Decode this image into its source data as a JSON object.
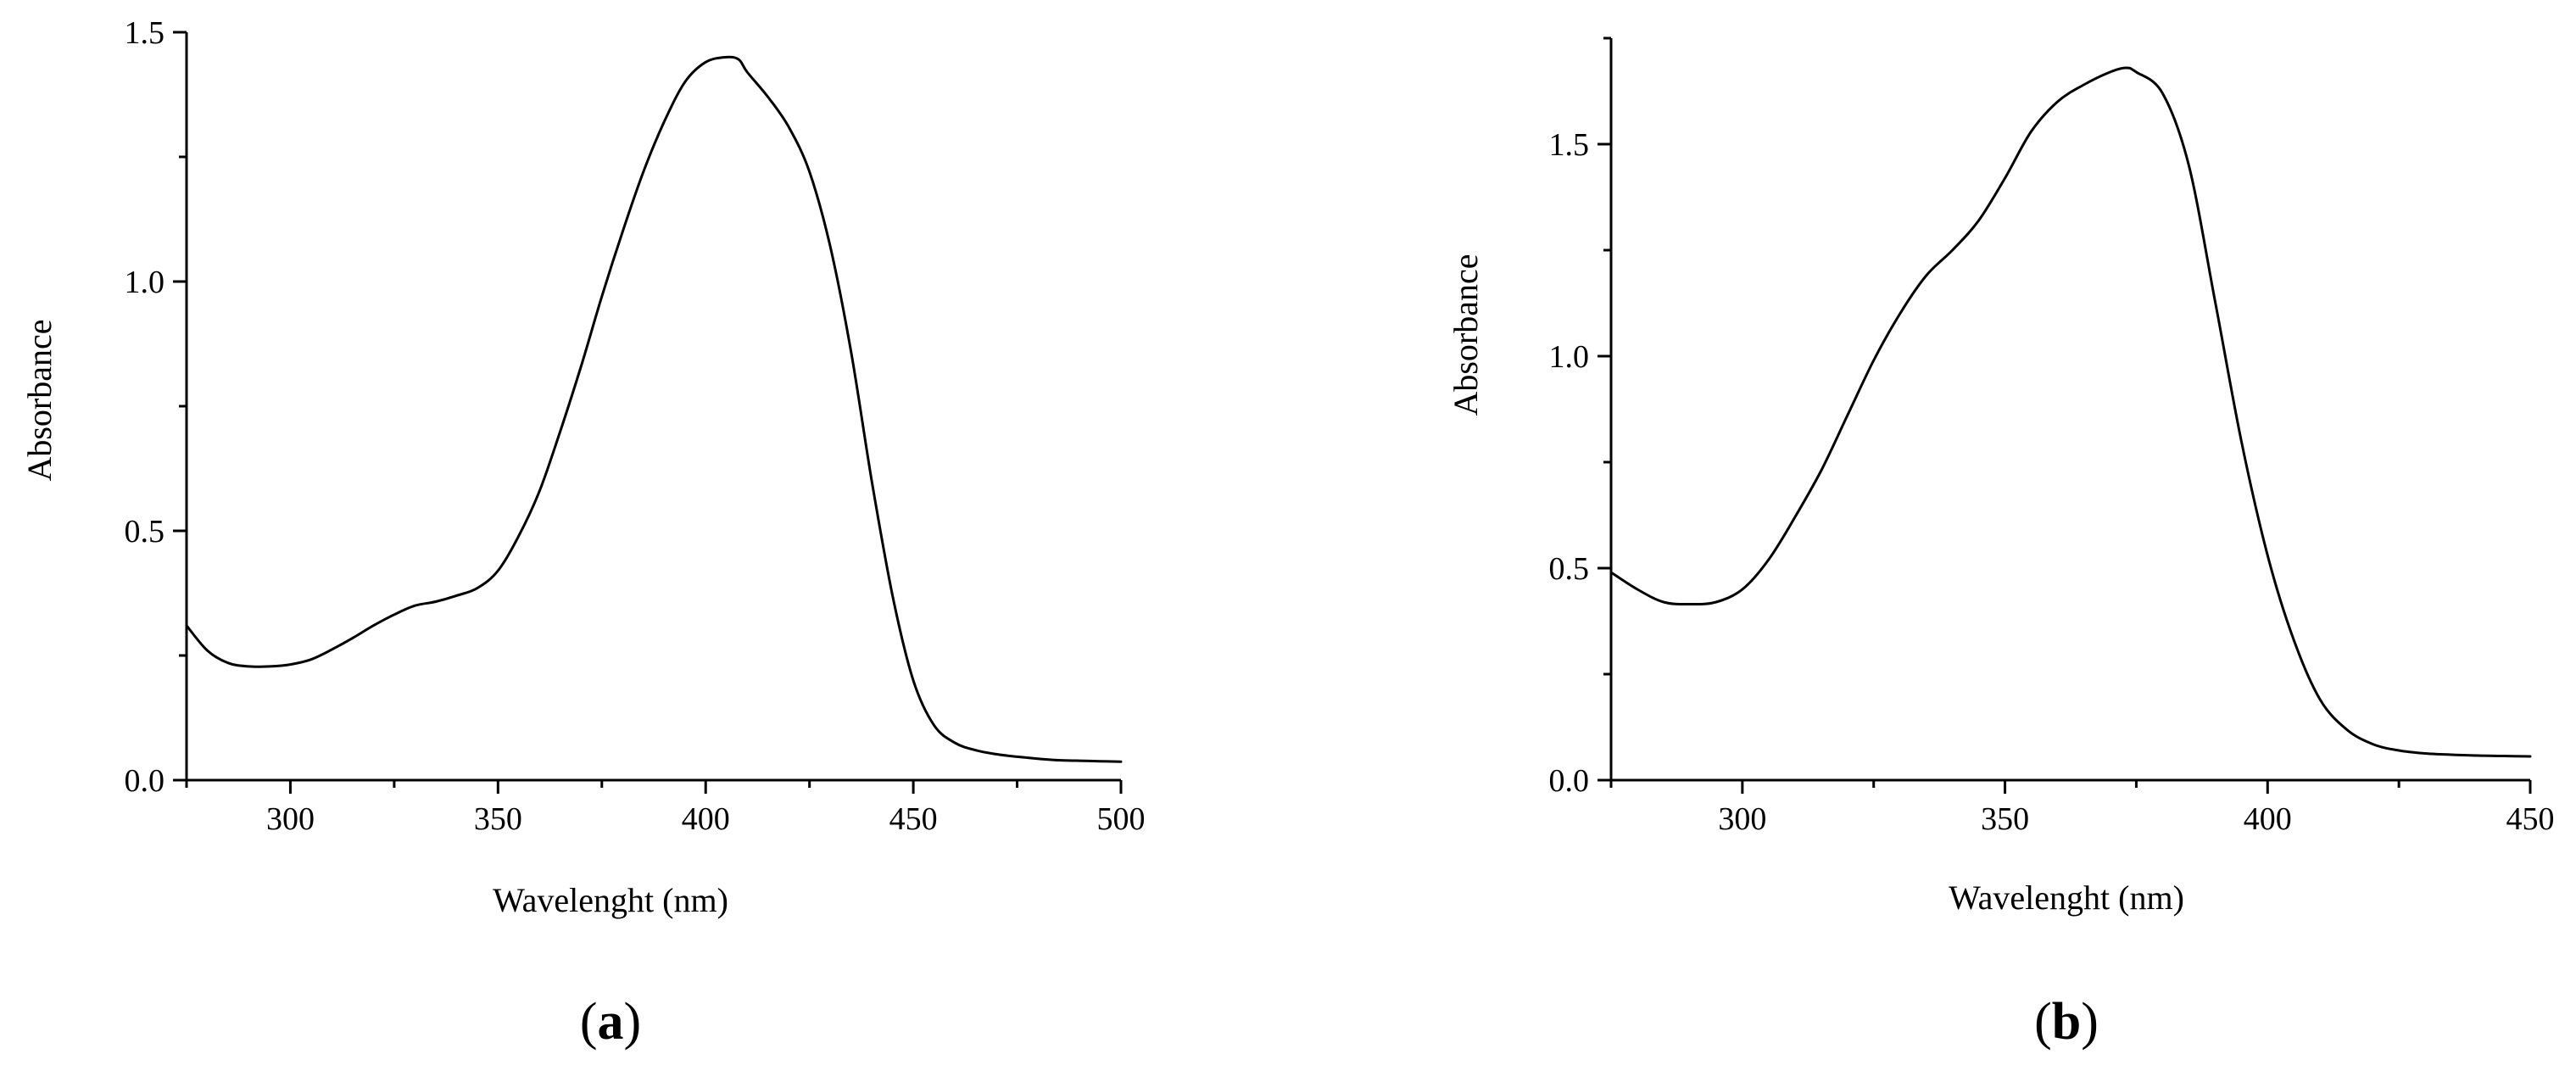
{
  "chart_data": [
    {
      "type": "line",
      "panel": "a",
      "xlabel": "Wavelenght (nm)",
      "ylabel": "Absorbance",
      "xlim": [
        275,
        500
      ],
      "ylim": [
        0,
        1.5
      ],
      "xticks": [
        300,
        350,
        400,
        450,
        500
      ],
      "yticks": [
        0.0,
        0.5,
        1.0,
        1.5
      ],
      "xtick_labels": [
        "300",
        "350",
        "400",
        "450",
        "500"
      ],
      "ytick_labels": [
        "0.0",
        "0.5",
        "1.0",
        "1.5"
      ],
      "grid": false,
      "series": [
        {
          "x": [
            275,
            280,
            285,
            290,
            295,
            300,
            305,
            310,
            315,
            320,
            325,
            330,
            335,
            340,
            345,
            350,
            355,
            360,
            365,
            370,
            375,
            380,
            385,
            390,
            395,
            400,
            405,
            408,
            410,
            415,
            420,
            425,
            430,
            435,
            440,
            445,
            450,
            455,
            460,
            465,
            470,
            475,
            480,
            485,
            490,
            495,
            500
          ],
          "y": [
            0.31,
            0.26,
            0.235,
            0.228,
            0.228,
            0.232,
            0.242,
            0.262,
            0.285,
            0.31,
            0.332,
            0.35,
            0.358,
            0.37,
            0.385,
            0.42,
            0.49,
            0.58,
            0.7,
            0.83,
            0.97,
            1.1,
            1.22,
            1.32,
            1.4,
            1.44,
            1.45,
            1.445,
            1.42,
            1.37,
            1.31,
            1.22,
            1.07,
            0.86,
            0.6,
            0.37,
            0.2,
            0.11,
            0.075,
            0.06,
            0.052,
            0.047,
            0.043,
            0.04,
            0.039,
            0.038,
            0.037
          ]
        }
      ]
    },
    {
      "type": "line",
      "panel": "b",
      "xlabel": "Wavelenght (nm)",
      "ylabel": "Absorbance",
      "xlim": [
        275,
        450
      ],
      "ylim": [
        0,
        1.75
      ],
      "xticks": [
        300,
        350,
        400,
        450
      ],
      "yticks": [
        0.0,
        0.5,
        1.0,
        1.5
      ],
      "xtick_labels": [
        "300",
        "350",
        "400",
        "450"
      ],
      "ytick_labels": [
        "0.0",
        "0.5",
        "1.0",
        "1.5"
      ],
      "grid": false,
      "series": [
        {
          "x": [
            275,
            280,
            285,
            290,
            295,
            300,
            305,
            310,
            315,
            320,
            325,
            330,
            335,
            340,
            345,
            350,
            355,
            360,
            365,
            370,
            373,
            375,
            380,
            385,
            390,
            395,
            400,
            405,
            410,
            415,
            420,
            425,
            430,
            435,
            440,
            445,
            450
          ],
          "y": [
            0.49,
            0.45,
            0.42,
            0.415,
            0.42,
            0.45,
            0.52,
            0.62,
            0.73,
            0.86,
            0.99,
            1.1,
            1.19,
            1.25,
            1.32,
            1.42,
            1.53,
            1.6,
            1.64,
            1.67,
            1.68,
            1.67,
            1.62,
            1.45,
            1.13,
            0.8,
            0.53,
            0.33,
            0.19,
            0.12,
            0.085,
            0.07,
            0.063,
            0.06,
            0.058,
            0.057,
            0.056
          ]
        }
      ]
    }
  ],
  "panel_labels": {
    "a": {
      "open": "(",
      "letter": "a",
      "close": ")"
    },
    "b": {
      "open": "(",
      "letter": "b",
      "close": ")"
    }
  }
}
